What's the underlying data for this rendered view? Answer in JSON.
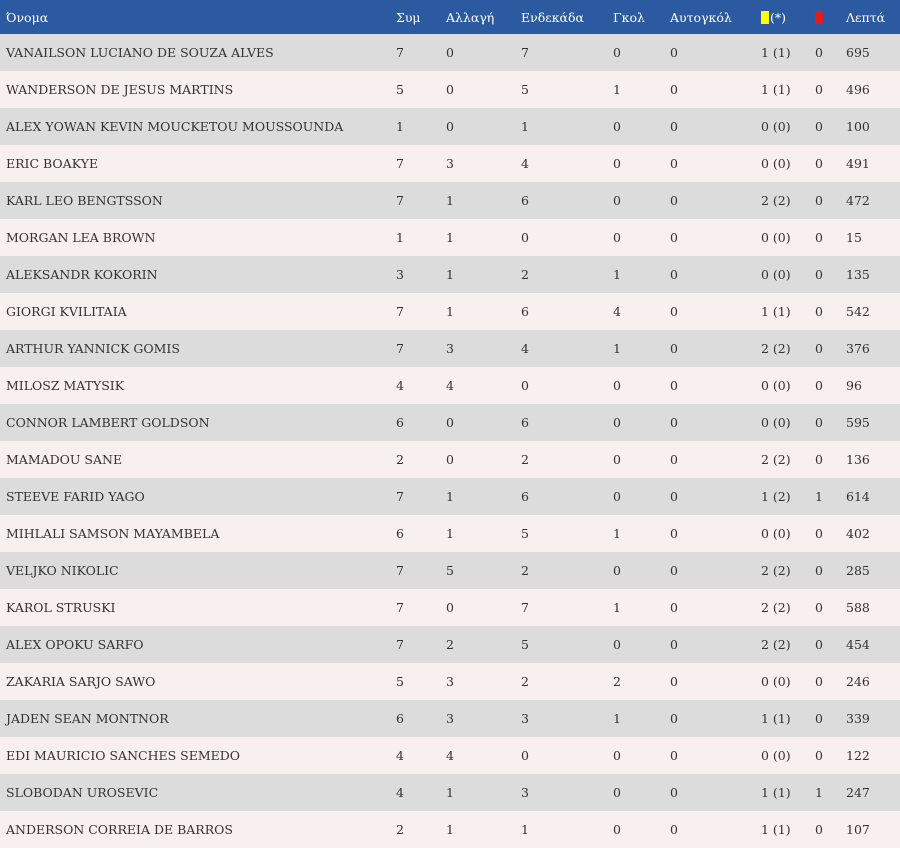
{
  "headers": {
    "name": "Όνομα",
    "appearances": "Συμ",
    "substitutions": "Αλλαγή",
    "starting_eleven": "Ενδεκάδα",
    "goals": "Γκολ",
    "own_goals": "Αυτογκόλ",
    "yellow_suffix": "(*)",
    "minutes": "Λεπτά"
  },
  "colors": {
    "header_bg": "#2c5aa0",
    "row_odd": "#dcdcdc",
    "row_even": "#f7eff0",
    "yellow_card": "#ffff00",
    "red_card": "#e31b1b"
  },
  "rows": [
    {
      "name": "VANAILSON LUCIANO DE SOUZA ALVES",
      "apps": "7",
      "subs": "0",
      "starts": "7",
      "goals": "0",
      "own_goals": "0",
      "yellow": "1 (1)",
      "red": "0",
      "minutes": "695"
    },
    {
      "name": "WANDERSON DE JESUS MARTINS",
      "apps": "5",
      "subs": "0",
      "starts": "5",
      "goals": "1",
      "own_goals": "0",
      "yellow": "1 (1)",
      "red": "0",
      "minutes": "496"
    },
    {
      "name": "ALEX YOWAN KEVIN MOUCKETOU MOUSSOUNDA",
      "apps": "1",
      "subs": "0",
      "starts": "1",
      "goals": "0",
      "own_goals": "0",
      "yellow": "0 (0)",
      "red": "0",
      "minutes": "100"
    },
    {
      "name": "ERIC BOAKYE",
      "apps": "7",
      "subs": "3",
      "starts": "4",
      "goals": "0",
      "own_goals": "0",
      "yellow": "0 (0)",
      "red": "0",
      "minutes": "491"
    },
    {
      "name": "KARL LEO BENGTSSON",
      "apps": "7",
      "subs": "1",
      "starts": "6",
      "goals": "0",
      "own_goals": "0",
      "yellow": "2 (2)",
      "red": "0",
      "minutes": "472"
    },
    {
      "name": "MORGAN LEA BROWN",
      "apps": "1",
      "subs": "1",
      "starts": "0",
      "goals": "0",
      "own_goals": "0",
      "yellow": "0 (0)",
      "red": "0",
      "minutes": "15"
    },
    {
      "name": "ALEKSANDR KOKORIN",
      "apps": "3",
      "subs": "1",
      "starts": "2",
      "goals": "1",
      "own_goals": "0",
      "yellow": "0 (0)",
      "red": "0",
      "minutes": "135"
    },
    {
      "name": "GIORGI KVILITAIA",
      "apps": "7",
      "subs": "1",
      "starts": "6",
      "goals": "4",
      "own_goals": "0",
      "yellow": "1 (1)",
      "red": "0",
      "minutes": "542"
    },
    {
      "name": "ARTHUR YANNICK GOMIS",
      "apps": "7",
      "subs": "3",
      "starts": "4",
      "goals": "1",
      "own_goals": "0",
      "yellow": "2 (2)",
      "red": "0",
      "minutes": "376"
    },
    {
      "name": "MILOSZ MATYSIK",
      "apps": "4",
      "subs": "4",
      "starts": "0",
      "goals": "0",
      "own_goals": "0",
      "yellow": "0 (0)",
      "red": "0",
      "minutes": "96"
    },
    {
      "name": "CONNOR LAMBERT GOLDSON",
      "apps": "6",
      "subs": "0",
      "starts": "6",
      "goals": "0",
      "own_goals": "0",
      "yellow": "0 (0)",
      "red": "0",
      "minutes": "595"
    },
    {
      "name": "MAMADOU SANE",
      "apps": "2",
      "subs": "0",
      "starts": "2",
      "goals": "0",
      "own_goals": "0",
      "yellow": "2 (2)",
      "red": "0",
      "minutes": "136"
    },
    {
      "name": "STEEVE FARID YAGO",
      "apps": "7",
      "subs": "1",
      "starts": "6",
      "goals": "0",
      "own_goals": "0",
      "yellow": "1 (2)",
      "red": "1",
      "minutes": "614"
    },
    {
      "name": "MIHLALI SAMSON MAYAMBELA",
      "apps": "6",
      "subs": "1",
      "starts": "5",
      "goals": "1",
      "own_goals": "0",
      "yellow": "0 (0)",
      "red": "0",
      "minutes": "402"
    },
    {
      "name": "VELJKO NIKOLIC",
      "apps": "7",
      "subs": "5",
      "starts": "2",
      "goals": "0",
      "own_goals": "0",
      "yellow": "2 (2)",
      "red": "0",
      "minutes": "285"
    },
    {
      "name": "KAROL STRUSKI",
      "apps": "7",
      "subs": "0",
      "starts": "7",
      "goals": "1",
      "own_goals": "0",
      "yellow": "2 (2)",
      "red": "0",
      "minutes": "588"
    },
    {
      "name": "ALEX OPOKU SARFO",
      "apps": "7",
      "subs": "2",
      "starts": "5",
      "goals": "0",
      "own_goals": "0",
      "yellow": "2 (2)",
      "red": "0",
      "minutes": "454"
    },
    {
      "name": "ZAKARIA SARJO SAWO",
      "apps": "5",
      "subs": "3",
      "starts": "2",
      "goals": "2",
      "own_goals": "0",
      "yellow": "0 (0)",
      "red": "0",
      "minutes": "246"
    },
    {
      "name": "JADEN SEAN MONTNOR",
      "apps": "6",
      "subs": "3",
      "starts": "3",
      "goals": "1",
      "own_goals": "0",
      "yellow": "1 (1)",
      "red": "0",
      "minutes": "339"
    },
    {
      "name": "EDI MAURICIO SANCHES SEMEDO",
      "apps": "4",
      "subs": "4",
      "starts": "0",
      "goals": "0",
      "own_goals": "0",
      "yellow": "0 (0)",
      "red": "0",
      "minutes": "122"
    },
    {
      "name": "SLOBODAN UROSEVIC",
      "apps": "4",
      "subs": "1",
      "starts": "3",
      "goals": "0",
      "own_goals": "0",
      "yellow": "1 (1)",
      "red": "1",
      "minutes": "247"
    },
    {
      "name": "ANDERSON CORREIA DE BARROS",
      "apps": "2",
      "subs": "1",
      "starts": "1",
      "goals": "0",
      "own_goals": "0",
      "yellow": "1 (1)",
      "red": "0",
      "minutes": "107"
    }
  ]
}
